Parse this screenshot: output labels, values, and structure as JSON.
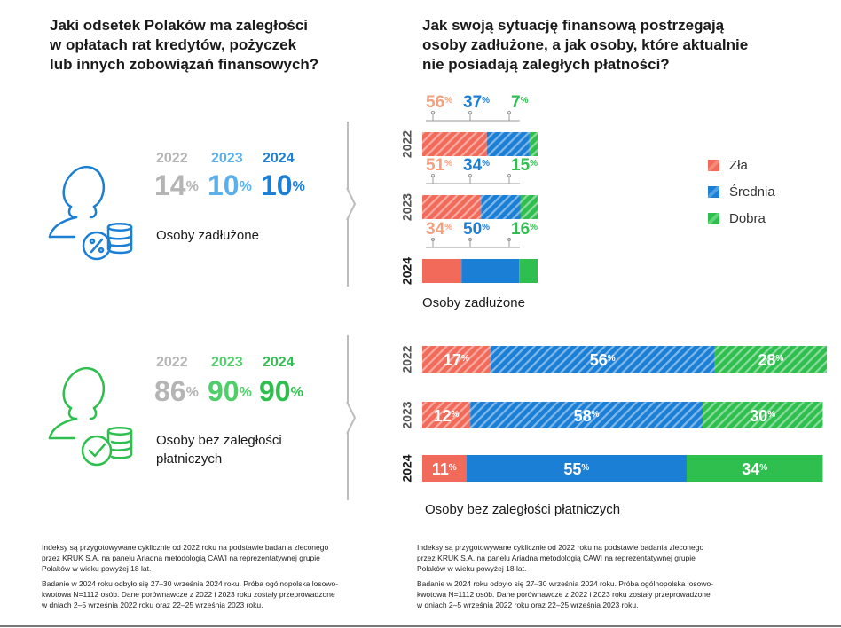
{
  "colors": {
    "zla": "#f26a5a",
    "zla_label": "#f4a07e",
    "srednia": "#1c7fd6",
    "dobra": "#2fbf4f",
    "grey": "#b5b5b5",
    "light_blue": "#5ab0ec",
    "light_green": "#4fcf6a"
  },
  "left": {
    "title_lines": [
      "Jaki odsetek Polaków ma zaległości",
      "w opłatach rat kredytów, pożyczek",
      "lub innych zobowiązań finansowych?"
    ],
    "indebted": {
      "icon": "person-percent-coins-icon",
      "years": [
        "2022",
        "2023",
        "2024"
      ],
      "values": [
        "14",
        "10",
        "10"
      ],
      "unit": "%",
      "label": "Osoby zadłużone"
    },
    "no_arrears": {
      "icon": "person-check-coins-icon",
      "years": [
        "2022",
        "2023",
        "2024"
      ],
      "values": [
        "86",
        "90",
        "90"
      ],
      "unit": "%",
      "label_lines": [
        "Osoby bez zaległości",
        "płatniczych"
      ]
    },
    "footnote": [
      "Indeksy są przygotowywane cyklicznie od 2022 roku na podstawie badania zleconego przez KRUK S.A. na panelu Ariadna metodologią CAWI na reprezentatywnej grupie Polaków w wieku powyżej 18 lat.",
      "Badanie w 2024 roku odbyło się 27–30 września 2024 roku. Próba ogólnopolska losowo-kwotowa N=1112 osób. Dane porównawcze z 2022 i 2023 roku zostały przeprowadzone w dniach 2–5 września 2022 roku oraz 22–25 września 2023 roku."
    ]
  },
  "right": {
    "title_lines": [
      "Jak swoją sytuację finansową postrzegają",
      "osoby zadłużone, a jak osoby, które aktualnie",
      "nie posiadają zaległych płatności?"
    ],
    "legend": [
      {
        "label": "Zła",
        "color": "#f26a5a"
      },
      {
        "label": "Średnia",
        "color": "#1c7fd6"
      },
      {
        "label": "Dobra",
        "color": "#2fbf4f"
      }
    ],
    "indebted_label": "Osoby zadłużone",
    "no_arrears_label": "Osoby bez zaległości płatniczych",
    "footnote": [
      "Indeksy są przygotowywane cyklicznie od 2022 roku na podstawie badania zleconego przez KRUK S.A. na panelu Ariadna metodologią CAWI na reprezentatywnej grupie Polaków w wieku powyżej 18 lat.",
      "Badanie w 2024 roku odbyło się 27–30 września 2024 roku. Próba ogólnopolska losowo-kwotowa N=1112 osób. Dane porównawcze z 2022 i 2023 roku zostały przeprowadzone w dniach 2–5 września 2022 roku oraz 22–25 września 2023 roku."
    ]
  },
  "chart_data": [
    {
      "type": "bar",
      "stacked": true,
      "orientation": "horizontal",
      "title": "Osoby zadłużone",
      "categories": [
        "2022",
        "2023",
        "2024"
      ],
      "series": [
        {
          "name": "Zła",
          "values": [
            56,
            51,
            34
          ]
        },
        {
          "name": "Średnia",
          "values": [
            37,
            34,
            50
          ]
        },
        {
          "name": "Dobra",
          "values": [
            7,
            15,
            16
          ]
        }
      ],
      "unit": "%",
      "legend_position": "right"
    },
    {
      "type": "bar",
      "stacked": true,
      "orientation": "horizontal",
      "title": "Osoby bez zaległości płatniczych",
      "categories": [
        "2022",
        "2023",
        "2024"
      ],
      "series": [
        {
          "name": "Zła",
          "values": [
            17,
            12,
            11
          ]
        },
        {
          "name": "Średnia",
          "values": [
            56,
            58,
            55
          ]
        },
        {
          "name": "Dobra",
          "values": [
            28,
            30,
            34
          ]
        }
      ],
      "unit": "%"
    }
  ]
}
